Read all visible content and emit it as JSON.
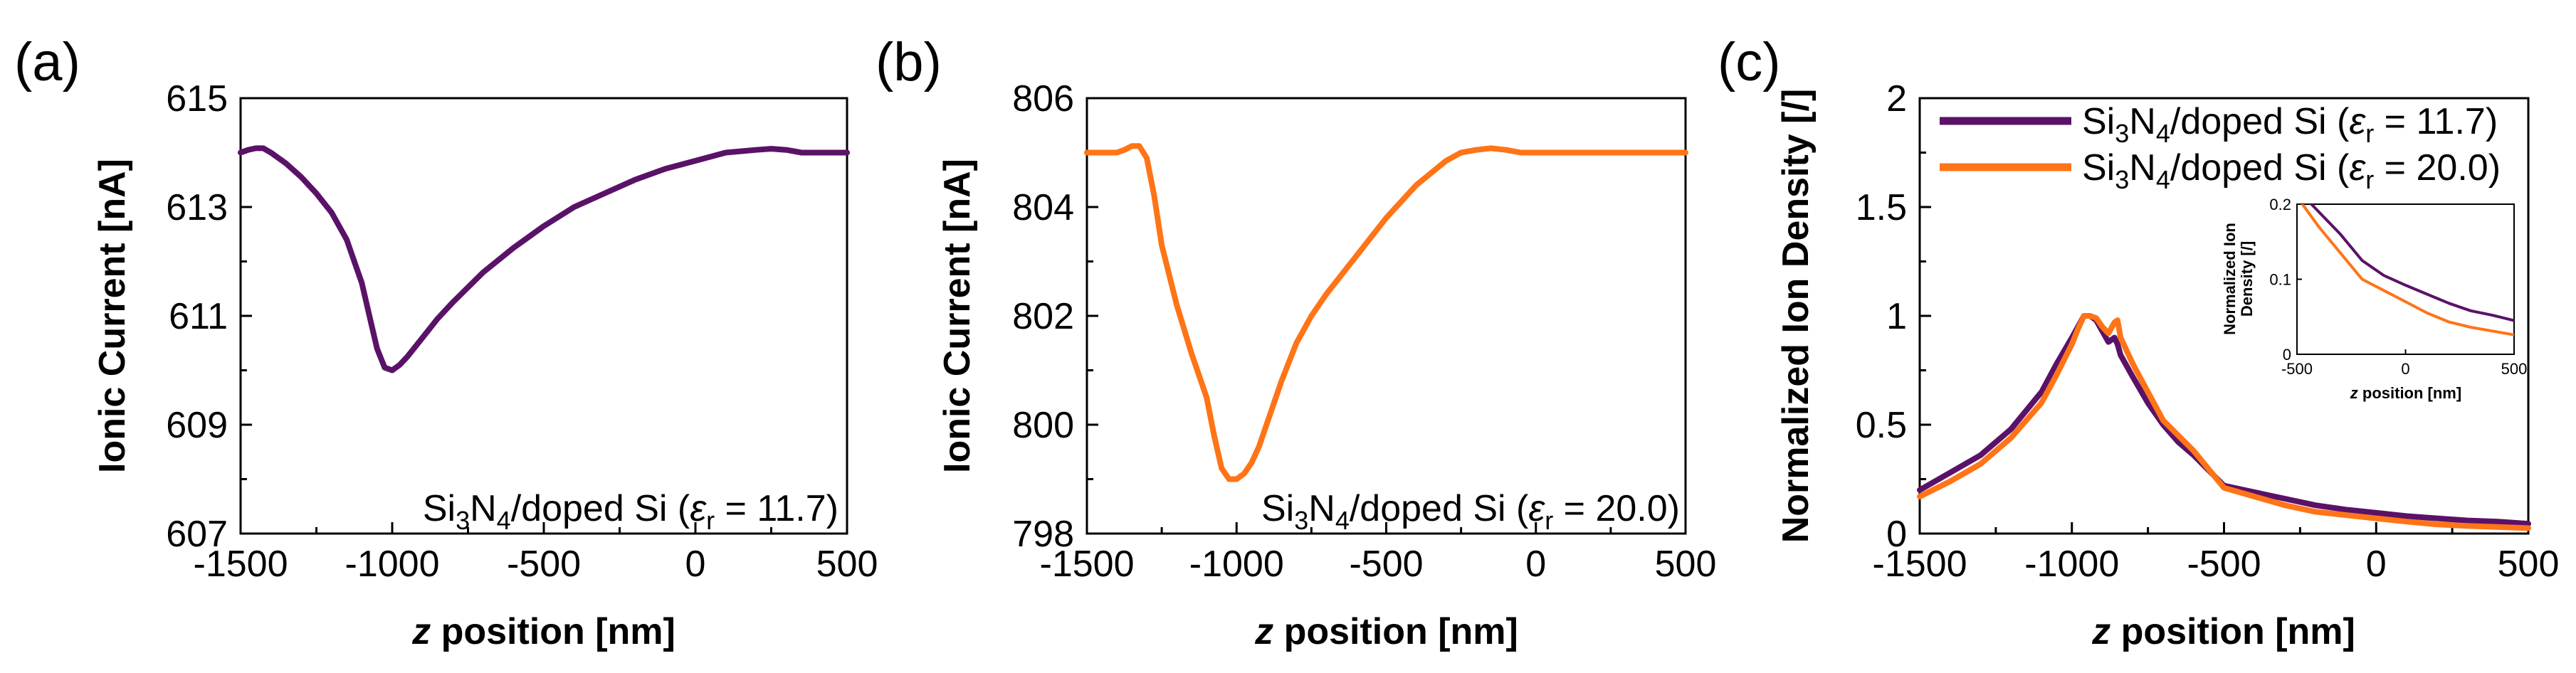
{
  "colors": {
    "purple": "#5a1268",
    "orange": "#ff7417",
    "axis": "#000000"
  },
  "chart_data": [
    {
      "panel": "(a)",
      "type": "line",
      "xlabel_italic": "z",
      "xlabel_rest": " position [nm]",
      "ylabel": "Ionic Current [nA]",
      "xlim": [
        -1500,
        500
      ],
      "ylim": [
        607,
        615
      ],
      "xticks": [
        -1500,
        -1000,
        -500,
        0,
        500
      ],
      "yticks": [
        607,
        609,
        611,
        613,
        615
      ],
      "annotation": {
        "pre": "Si",
        "sub1": "3",
        "mid": "N",
        "sub2": "4",
        "post": "/doped Si (",
        "eps": "ε",
        "epssub": "r",
        "val": " = 11.7)"
      },
      "series": [
        {
          "color": "#5a1268",
          "x": [
            -1500,
            -1475,
            -1450,
            -1425,
            -1400,
            -1350,
            -1300,
            -1250,
            -1200,
            -1150,
            -1100,
            -1075,
            -1050,
            -1025,
            -1000,
            -975,
            -950,
            -900,
            -850,
            -800,
            -700,
            -600,
            -500,
            -400,
            -300,
            -200,
            -100,
            0,
            100,
            200,
            250,
            300,
            350,
            400,
            450,
            500
          ],
          "y": [
            614.0,
            614.05,
            614.08,
            614.08,
            614.0,
            613.8,
            613.55,
            613.25,
            612.9,
            612.4,
            611.6,
            611.0,
            610.4,
            610.05,
            610.0,
            610.1,
            610.25,
            610.6,
            610.95,
            611.25,
            611.8,
            612.25,
            612.65,
            613.0,
            613.25,
            613.5,
            613.7,
            613.85,
            614.0,
            614.05,
            614.07,
            614.05,
            614.0,
            614.0,
            614.0,
            614.0
          ]
        }
      ]
    },
    {
      "panel": "(b)",
      "type": "line",
      "xlabel_italic": "z",
      "xlabel_rest": " position [nm]",
      "ylabel": "Ionic Current [nA]",
      "xlim": [
        -1500,
        500
      ],
      "ylim": [
        798,
        806
      ],
      "xticks": [
        -1500,
        -1000,
        -500,
        0,
        500
      ],
      "yticks": [
        798,
        800,
        802,
        804,
        806
      ],
      "annotation": {
        "pre": "Si",
        "sub1": "3",
        "mid": "N",
        "sub2": "4",
        "post": "/doped Si (",
        "eps": "ε",
        "epssub": "r",
        "val": " = 20.0)"
      },
      "series": [
        {
          "color": "#ff7417",
          "x": [
            -1500,
            -1450,
            -1400,
            -1375,
            -1350,
            -1325,
            -1300,
            -1275,
            -1250,
            -1200,
            -1150,
            -1100,
            -1075,
            -1050,
            -1025,
            -1000,
            -975,
            -950,
            -925,
            -900,
            -850,
            -800,
            -750,
            -700,
            -600,
            -500,
            -400,
            -300,
            -250,
            -200,
            -150,
            -100,
            -50,
            0,
            100,
            200,
            300,
            400,
            500
          ],
          "y": [
            805.0,
            805.0,
            805.0,
            805.05,
            805.12,
            805.12,
            804.9,
            804.2,
            803.3,
            802.2,
            801.3,
            800.5,
            799.8,
            799.2,
            799.0,
            799.0,
            799.1,
            799.3,
            799.6,
            800.0,
            800.8,
            801.5,
            802.0,
            802.4,
            803.1,
            803.8,
            804.4,
            804.85,
            805.0,
            805.05,
            805.08,
            805.05,
            805.0,
            805.0,
            805.0,
            805.0,
            805.0,
            805.0,
            805.0
          ]
        }
      ]
    },
    {
      "panel": "(c)",
      "type": "line",
      "xlabel_italic": "z",
      "xlabel_rest": " position [nm]",
      "ylabel": "Normalized Ion Density [/]",
      "xlim": [
        -1500,
        500
      ],
      "ylim": [
        0,
        2
      ],
      "xticks": [
        -1500,
        -1000,
        -500,
        0,
        500
      ],
      "yticks": [
        0,
        0.5,
        1,
        1.5,
        2
      ],
      "ytick_labels": [
        "0",
        "0.5",
        "1",
        "1.5",
        "2"
      ],
      "legend": [
        {
          "pre": "Si",
          "sub1": "3",
          "mid": "N",
          "sub2": "4",
          "post": "/doped Si (",
          "eps": "ε",
          "epssub": "r",
          "val": " = 11.7)",
          "color": "#5a1268"
        },
        {
          "pre": "Si",
          "sub1": "3",
          "mid": "N",
          "sub2": "4",
          "post": "/doped Si (",
          "eps": "ε",
          "epssub": "r",
          "val": " = 20.0)",
          "color": "#ff7417"
        }
      ],
      "series": [
        {
          "color": "#5a1268",
          "x": [
            -1500,
            -1400,
            -1300,
            -1200,
            -1100,
            -1050,
            -1000,
            -980,
            -960,
            -950,
            -940,
            -920,
            -900,
            -880,
            -860,
            -850,
            -840,
            -800,
            -750,
            -700,
            -650,
            -600,
            -500,
            -400,
            -300,
            -200,
            -100,
            0,
            100,
            200,
            300,
            400,
            500
          ],
          "y": [
            0.2,
            0.28,
            0.36,
            0.48,
            0.65,
            0.78,
            0.9,
            0.95,
            1.0,
            1.0,
            1.0,
            0.98,
            0.93,
            0.88,
            0.9,
            0.87,
            0.82,
            0.72,
            0.6,
            0.5,
            0.42,
            0.36,
            0.22,
            0.19,
            0.16,
            0.13,
            0.11,
            0.095,
            0.08,
            0.07,
            0.06,
            0.055,
            0.045
          ]
        },
        {
          "color": "#ff7417",
          "x": [
            -1500,
            -1400,
            -1300,
            -1200,
            -1100,
            -1050,
            -1000,
            -980,
            -960,
            -950,
            -940,
            -920,
            -900,
            -880,
            -860,
            -850,
            -840,
            -800,
            -750,
            -700,
            -650,
            -600,
            -500,
            -400,
            -300,
            -200,
            -100,
            0,
            100,
            200,
            300,
            400,
            500
          ],
          "y": [
            0.17,
            0.24,
            0.32,
            0.44,
            0.6,
            0.73,
            0.87,
            0.94,
            1.0,
            1.0,
            1.0,
            0.99,
            0.95,
            0.92,
            0.97,
            0.98,
            0.9,
            0.78,
            0.65,
            0.52,
            0.45,
            0.38,
            0.21,
            0.17,
            0.13,
            0.1,
            0.085,
            0.07,
            0.055,
            0.042,
            0.035,
            0.03,
            0.025
          ]
        }
      ],
      "inset": {
        "xlabel_italic": "z",
        "xlabel_rest": " position [nm]",
        "ylabel": [
          "Normalized Ion",
          "Density [/]"
        ],
        "xlim": [
          -500,
          500
        ],
        "ylim": [
          0,
          0.2
        ],
        "xticks": [
          -500,
          0,
          500
        ],
        "yticks": [
          0,
          0.1,
          0.2
        ],
        "ytick_labels": [
          "0",
          "0.1",
          "0.2"
        ],
        "series": [
          {
            "color": "#5a1268",
            "x": [
              -500,
              -400,
              -300,
              -200,
              -100,
              0,
              100,
              200,
              300,
              400,
              500
            ],
            "y": [
              0.22,
              0.19,
              0.16,
              0.125,
              0.105,
              0.092,
              0.08,
              0.068,
              0.058,
              0.052,
              0.045
            ]
          },
          {
            "color": "#ff7417",
            "x": [
              -500,
              -400,
              -300,
              -200,
              -100,
              0,
              100,
              200,
              300,
              400,
              500
            ],
            "y": [
              0.21,
              0.17,
              0.135,
              0.1,
              0.085,
              0.07,
              0.055,
              0.043,
              0.036,
              0.031,
              0.026
            ]
          }
        ]
      }
    }
  ]
}
